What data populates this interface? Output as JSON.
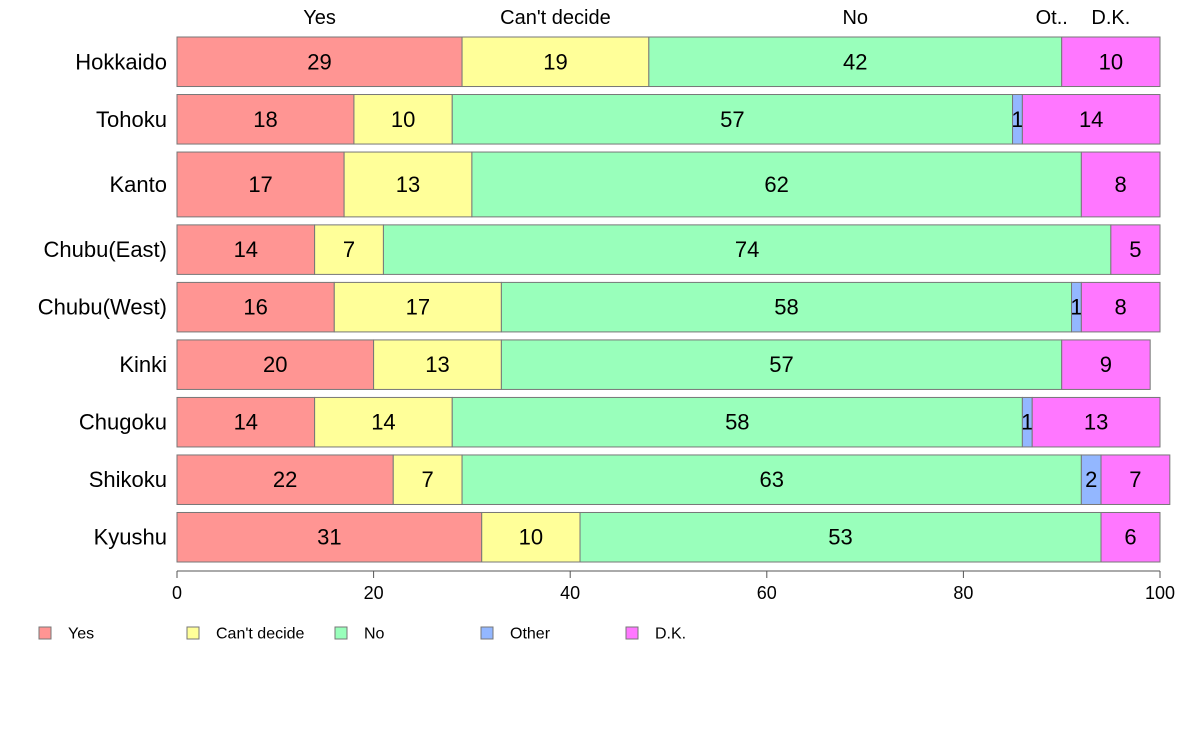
{
  "chart_data": {
    "type": "bar",
    "orientation": "horizontal",
    "stacked": true,
    "categories": [
      "Hokkaido",
      "Tohoku",
      "Kanto",
      "Chubu(East)",
      "Chubu(West)",
      "Kinki",
      "Chugoku",
      "Shikoku",
      "Kyushu"
    ],
    "series": [
      {
        "name": "Yes",
        "color": "#FF9593",
        "values": [
          29,
          18,
          17,
          14,
          16,
          20,
          14,
          22,
          31
        ]
      },
      {
        "name": "Can't decide",
        "color": "#FFFF99",
        "values": [
          19,
          10,
          13,
          7,
          17,
          13,
          14,
          7,
          10
        ]
      },
      {
        "name": "No",
        "color": "#99FFBB",
        "values": [
          42,
          57,
          62,
          74,
          58,
          57,
          58,
          63,
          53
        ]
      },
      {
        "name": "Other",
        "color": "#93B7FF",
        "values": [
          0,
          1,
          0,
          0,
          1,
          0,
          1,
          2,
          0
        ]
      },
      {
        "name": "D.K.",
        "color": "#FF77FF",
        "values": [
          10,
          14,
          8,
          5,
          8,
          9,
          13,
          7,
          6
        ]
      }
    ],
    "top_labels": [
      "Yes",
      "Can't decide",
      "No",
      "Ot..",
      "D.K."
    ],
    "row_weights": [
      0.42,
      0.42,
      0.55,
      0.42,
      0.42,
      0.42,
      0.42,
      0.42,
      0.42
    ],
    "xlim": [
      0,
      100
    ],
    "xticks": [
      0,
      20,
      40,
      60,
      80,
      100
    ],
    "legend_position": "bottom-left",
    "grid": false
  }
}
